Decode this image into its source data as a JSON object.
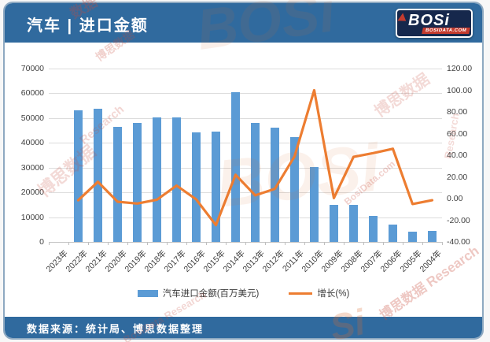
{
  "header": {
    "title": "汽车 | 进口金额",
    "logo": {
      "brand": "BOSi",
      "domain": "BOSIDATA.COM"
    }
  },
  "footer": {
    "source": "数据来源：统计局、博思数据整理"
  },
  "watermarks": [
    "博思数据",
    "Research",
    "BosiData Research",
    "BOSi",
    "数据",
    "BosiData.com",
    "Si",
    "博思数据 Research"
  ],
  "colors": {
    "header_blue": "#306a9e",
    "bar_blue": "#5b9bd5",
    "line_orange": "#ed7d31",
    "gridline": "#dcdcdc",
    "logo_navy": "#16284c",
    "logo_red": "#c43b2e"
  },
  "chart_data": {
    "type": "bar+line combo",
    "title": "汽车 | 进口金额",
    "categories": [
      "2023年",
      "2022年",
      "2021年",
      "2020年",
      "2019年",
      "2018年",
      "2017年",
      "2016年",
      "2015年",
      "2014年",
      "2013年",
      "2012年",
      "2011年",
      "2010年",
      "2009年",
      "2008年",
      "2007年",
      "2006年",
      "2005年",
      "2004年"
    ],
    "series": [
      {
        "name": "汽车进口金额(百万美元)",
        "type": "bar",
        "axis": "left",
        "color": "#5b9bd5",
        "values": [
          null,
          53200,
          53900,
          46500,
          47900,
          50200,
          50400,
          44200,
          44400,
          60600,
          48100,
          46200,
          42300,
          30200,
          15100,
          15000,
          10500,
          6900,
          4200,
          4500
        ]
      },
      {
        "name": "增长(%)",
        "type": "line",
        "axis": "right",
        "color": "#ed7d31",
        "values": [
          null,
          -1.5,
          15.5,
          -2.9,
          -4.6,
          -1.0,
          12.0,
          -0.8,
          -24.5,
          22.0,
          3.0,
          9.0,
          39.0,
          100.0,
          0.5,
          38.5,
          42.0,
          46.0,
          -5.0,
          -1.5
        ]
      }
    ],
    "left_axis": {
      "min": 0,
      "max": 70000,
      "step": 10000,
      "ticks": [
        "0",
        "10000",
        "20000",
        "30000",
        "40000",
        "50000",
        "60000",
        "70000"
      ]
    },
    "right_axis": {
      "min": -40,
      "max": 120,
      "step": 20,
      "ticks": [
        "-40.00",
        "-20.00",
        "0.00",
        "20.00",
        "40.00",
        "60.00",
        "80.00",
        "100.00",
        "120.00"
      ]
    },
    "grid": true,
    "legend_position": "bottom"
  }
}
